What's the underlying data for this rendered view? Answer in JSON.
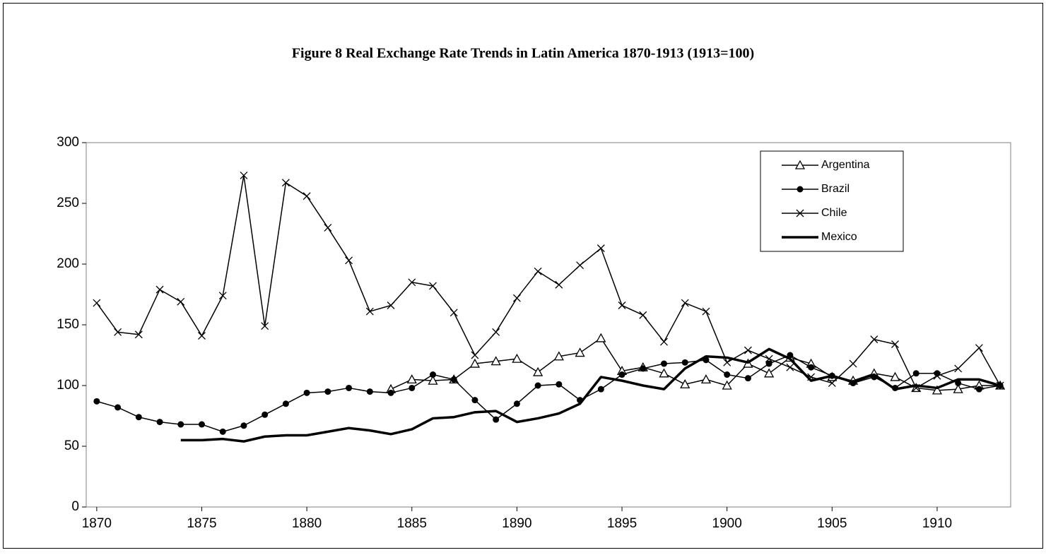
{
  "chart_data": {
    "type": "line",
    "title": "Figure 8 Real Exchange Rate Trends in Latin America 1870-1913 (1913=100)",
    "x": [
      1870,
      1871,
      1872,
      1873,
      1874,
      1875,
      1876,
      1877,
      1878,
      1879,
      1880,
      1881,
      1882,
      1883,
      1884,
      1885,
      1886,
      1887,
      1888,
      1889,
      1890,
      1891,
      1892,
      1893,
      1894,
      1895,
      1896,
      1897,
      1898,
      1899,
      1900,
      1901,
      1902,
      1903,
      1904,
      1905,
      1906,
      1907,
      1908,
      1909,
      1910,
      1911,
      1912,
      1913
    ],
    "series": [
      {
        "name": "Argentina",
        "color": "#000000",
        "marker": "triangle",
        "values": [
          null,
          null,
          null,
          null,
          null,
          null,
          null,
          null,
          null,
          null,
          null,
          null,
          null,
          null,
          97,
          105,
          104,
          105,
          118,
          120,
          122,
          111,
          124,
          127,
          139,
          112,
          115,
          110,
          101,
          105,
          100,
          118,
          110,
          123,
          118,
          107,
          104,
          110,
          107,
          98,
          96,
          97,
          100,
          100
        ]
      },
      {
        "name": "Brazil",
        "color": "#000000",
        "marker": "circle",
        "values": [
          87,
          82,
          74,
          70,
          68,
          68,
          62,
          67,
          76,
          85,
          94,
          95,
          98,
          95,
          94,
          98,
          109,
          105,
          88,
          72,
          85,
          100,
          101,
          88,
          97,
          109,
          114,
          118,
          119,
          121,
          109,
          106,
          118,
          125,
          115,
          108,
          102,
          107,
          98,
          110,
          110,
          102,
          97,
          100
        ]
      },
      {
        "name": "Chile",
        "color": "#000000",
        "marker": "x",
        "values": [
          168,
          144,
          142,
          179,
          169,
          141,
          174,
          273,
          149,
          267,
          256,
          230,
          203,
          161,
          166,
          185,
          182,
          160,
          125,
          144,
          172,
          194,
          183,
          199,
          213,
          166,
          158,
          136,
          168,
          161,
          119,
          129,
          122,
          115,
          107,
          102,
          118,
          138,
          134,
          98,
          108,
          114,
          131,
          100
        ]
      },
      {
        "name": "Mexico",
        "color": "#000000",
        "marker": "none",
        "line_width": 3.5,
        "values": [
          null,
          null,
          null,
          null,
          55,
          55,
          56,
          54,
          58,
          59,
          59,
          62,
          65,
          63,
          60,
          64,
          73,
          74,
          78,
          79,
          70,
          73,
          77,
          85,
          107,
          104,
          100,
          97,
          114,
          124,
          123,
          119,
          130,
          122,
          104,
          108,
          103,
          109,
          97,
          100,
          98,
          105,
          105,
          100
        ]
      }
    ],
    "xlim": [
      1869.5,
      1913.5
    ],
    "xticks": [
      1870,
      1875,
      1880,
      1885,
      1890,
      1895,
      1900,
      1905,
      1910
    ],
    "ylim": [
      0,
      300
    ],
    "yticks": [
      0,
      50,
      100,
      150,
      200,
      250,
      300
    ],
    "grid": false,
    "legend": "upper right"
  }
}
